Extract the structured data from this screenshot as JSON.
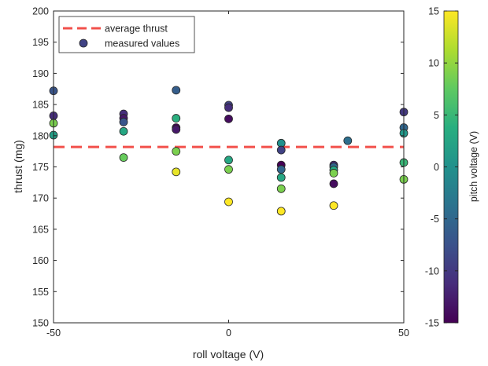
{
  "chart_data": {
    "type": "scatter",
    "title": "",
    "xlabel": "roll voltage (V)",
    "ylabel": "thrust (mg)",
    "xlim": [
      -50,
      50
    ],
    "ylim": [
      150,
      200
    ],
    "x_ticks": [
      -50,
      0,
      50
    ],
    "y_ticks": [
      150,
      155,
      160,
      165,
      170,
      175,
      180,
      185,
      190,
      195,
      200
    ],
    "grid": false,
    "legend": {
      "placement": "top-left",
      "entries": [
        "average thrust",
        "measured values"
      ]
    },
    "average_thrust": 178.2,
    "average_line_color": "#f2504b",
    "colorbar": {
      "label": "pitch voltage (V)",
      "range": [
        -15,
        15
      ],
      "ticks": [
        -15,
        -10,
        -5,
        0,
        5,
        10,
        15
      ],
      "colormap": "viridis"
    },
    "points": [
      {
        "x": -50,
        "y": 187.2,
        "c": -7
      },
      {
        "x": -50,
        "y": 183.2,
        "c": -11
      },
      {
        "x": -50,
        "y": 182.0,
        "c": 9
      },
      {
        "x": -50,
        "y": 180.1,
        "c": 2
      },
      {
        "x": -30,
        "y": 183.5,
        "c": -11
      },
      {
        "x": -30,
        "y": 182.8,
        "c": -13
      },
      {
        "x": -30,
        "y": 182.2,
        "c": -7
      },
      {
        "x": -30,
        "y": 180.7,
        "c": 3
      },
      {
        "x": -30,
        "y": 176.5,
        "c": 8
      },
      {
        "x": -15,
        "y": 187.3,
        "c": -6
      },
      {
        "x": -15,
        "y": 182.8,
        "c": 4
      },
      {
        "x": -15,
        "y": 181.3,
        "c": -15
      },
      {
        "x": -15,
        "y": 181.0,
        "c": -13
      },
      {
        "x": -15,
        "y": 177.5,
        "c": 9
      },
      {
        "x": -15,
        "y": 174.2,
        "c": 14
      },
      {
        "x": 0,
        "y": 184.9,
        "c": -9
      },
      {
        "x": 0,
        "y": 184.5,
        "c": -11
      },
      {
        "x": 0,
        "y": 182.7,
        "c": -14
      },
      {
        "x": 0,
        "y": 176.1,
        "c": 3
      },
      {
        "x": 0,
        "y": 174.6,
        "c": 9
      },
      {
        "x": 0,
        "y": 169.4,
        "c": 15
      },
      {
        "x": 15,
        "y": 178.8,
        "c": 0
      },
      {
        "x": 15,
        "y": 177.7,
        "c": -9
      },
      {
        "x": 15,
        "y": 175.3,
        "c": -15
      },
      {
        "x": 15,
        "y": 174.6,
        "c": -5
      },
      {
        "x": 15,
        "y": 173.3,
        "c": 3
      },
      {
        "x": 15,
        "y": 171.5,
        "c": 9
      },
      {
        "x": 15,
        "y": 167.9,
        "c": 15
      },
      {
        "x": 30,
        "y": 175.3,
        "c": -11
      },
      {
        "x": 30,
        "y": 175.0,
        "c": -5
      },
      {
        "x": 30,
        "y": 174.5,
        "c": 3
      },
      {
        "x": 30,
        "y": 174.0,
        "c": 9
      },
      {
        "x": 30,
        "y": 172.3,
        "c": -14
      },
      {
        "x": 30,
        "y": 168.8,
        "c": 15
      },
      {
        "x": 34,
        "y": 179.2,
        "c": -4
      },
      {
        "x": 50,
        "y": 183.8,
        "c": -10
      },
      {
        "x": 50,
        "y": 181.3,
        "c": -5
      },
      {
        "x": 50,
        "y": 180.4,
        "c": 1
      },
      {
        "x": 50,
        "y": 175.7,
        "c": 5
      },
      {
        "x": 50,
        "y": 173.0,
        "c": 9
      }
    ]
  }
}
